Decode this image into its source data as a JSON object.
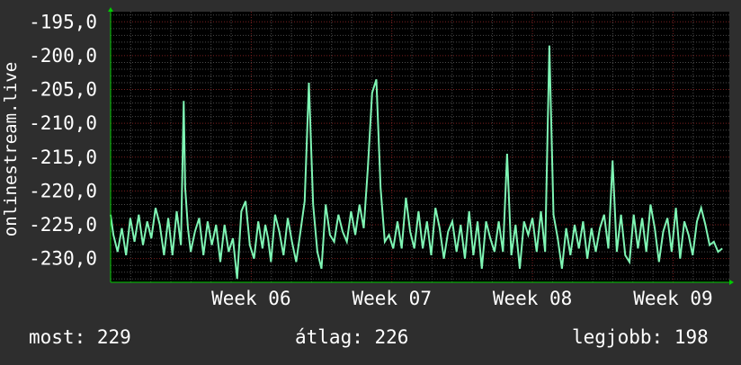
{
  "chart_data": {
    "type": "line",
    "ylabel": "onlinestream.live",
    "ylim": [
      -233.5,
      -193.5
    ],
    "yticks": [
      -195,
      -200,
      -205,
      -210,
      -215,
      -220,
      -225,
      -230
    ],
    "ytick_labels": [
      "-195,0",
      "-200,0",
      "-205,0",
      "-210,0",
      "-215,0",
      "-220,0",
      "-225,0",
      "-230,0"
    ],
    "xlim": [
      0,
      4.4
    ],
    "xticks": [
      1,
      2,
      3,
      4
    ],
    "xtick_labels": [
      "Week 06",
      "Week 07",
      "Week 08",
      "Week 09"
    ],
    "grid": true,
    "series": [
      {
        "color": "#7ff5b4",
        "x": [
          0.0,
          0.02,
          0.05,
          0.08,
          0.11,
          0.14,
          0.17,
          0.2,
          0.23,
          0.26,
          0.29,
          0.32,
          0.35,
          0.38,
          0.41,
          0.44,
          0.47,
          0.5,
          0.52,
          0.53,
          0.55,
          0.57,
          0.6,
          0.63,
          0.66,
          0.69,
          0.72,
          0.75,
          0.78,
          0.81,
          0.84,
          0.87,
          0.9,
          0.93,
          0.96,
          0.99,
          1.02,
          1.05,
          1.08,
          1.1,
          1.12,
          1.14,
          1.17,
          1.2,
          1.23,
          1.26,
          1.29,
          1.32,
          1.35,
          1.38,
          1.41,
          1.44,
          1.47,
          1.5,
          1.53,
          1.56,
          1.59,
          1.62,
          1.65,
          1.68,
          1.71,
          1.74,
          1.77,
          1.8,
          1.83,
          1.86,
          1.89,
          1.92,
          1.95,
          1.98,
          2.01,
          2.04,
          2.07,
          2.1,
          2.13,
          2.16,
          2.19,
          2.22,
          2.25,
          2.28,
          2.31,
          2.34,
          2.37,
          2.4,
          2.43,
          2.46,
          2.49,
          2.52,
          2.55,
          2.58,
          2.61,
          2.64,
          2.67,
          2.7,
          2.73,
          2.76,
          2.79,
          2.82,
          2.85,
          2.88,
          2.91,
          2.94,
          2.97,
          3.0,
          3.03,
          3.06,
          3.09,
          3.12,
          3.15,
          3.18,
          3.21,
          3.24,
          3.27,
          3.3,
          3.33,
          3.36,
          3.39,
          3.42,
          3.45,
          3.48,
          3.51,
          3.54,
          3.57,
          3.6,
          3.63,
          3.66,
          3.69,
          3.72,
          3.75,
          3.78,
          3.81,
          3.84,
          3.87,
          3.9,
          3.93,
          3.96,
          3.99,
          4.02,
          4.05,
          4.08,
          4.11,
          4.14,
          4.17,
          4.2,
          4.23,
          4.26,
          4.29,
          4.32,
          4.35
        ],
        "y": [
          -223.5,
          -226.5,
          -229.0,
          -225.5,
          -229.5,
          -224.0,
          -227.5,
          -223.5,
          -228.0,
          -224.5,
          -227.0,
          -222.5,
          -225.0,
          -229.5,
          -224.0,
          -229.5,
          -223.0,
          -228.0,
          -206.7,
          -219.5,
          -225.5,
          -229.0,
          -226.0,
          -224.0,
          -229.5,
          -224.5,
          -228.0,
          -225.0,
          -230.5,
          -225.0,
          -229.0,
          -227.0,
          -233.0,
          -223.0,
          -221.5,
          -228.0,
          -230.0,
          -224.5,
          -228.5,
          -225.0,
          -227.0,
          -230.5,
          -223.5,
          -226.0,
          -229.5,
          -224.0,
          -227.5,
          -230.5,
          -226.0,
          -221.5,
          -204.0,
          -222.0,
          -229.0,
          -231.5,
          -222.0,
          -226.5,
          -227.5,
          -223.5,
          -226.0,
          -227.5,
          -223.0,
          -226.5,
          -222.0,
          -225.5,
          -216.5,
          -205.5,
          -203.5,
          -219.5,
          -227.5,
          -226.5,
          -228.5,
          -224.5,
          -228.5,
          -221.0,
          -226.0,
          -228.5,
          -223.0,
          -228.5,
          -224.5,
          -229.5,
          -222.5,
          -225.5,
          -230.0,
          -226.0,
          -224.5,
          -229.0,
          -225.0,
          -230.0,
          -223.0,
          -229.5,
          -224.5,
          -231.5,
          -224.5,
          -227.0,
          -229.0,
          -224.5,
          -229.0,
          -214.5,
          -229.5,
          -225.0,
          -231.5,
          -224.5,
          -226.5,
          -224.0,
          -229.0,
          -223.0,
          -229.0,
          -198.5,
          -223.5,
          -227.0,
          -231.5,
          -225.5,
          -229.5,
          -225.0,
          -228.5,
          -224.5,
          -230.0,
          -225.5,
          -229.0,
          -225.5,
          -223.5,
          -228.5,
          -215.5,
          -229.0,
          -223.5,
          -229.5,
          -230.5,
          -223.5,
          -228.5,
          -224.0,
          -229.0,
          -222.0,
          -225.5,
          -230.5,
          -226.0,
          -224.0,
          -229.0,
          -222.5,
          -230.0,
          -224.5,
          -226.5,
          -229.5,
          -224.5,
          -222.5,
          -225.0,
          -228.0,
          -227.5,
          -229.0,
          -228.5
        ]
      }
    ]
  },
  "footer": {
    "most_label": "most:",
    "most_value": "229",
    "avg_label": "átlag:",
    "avg_value": "226",
    "best_label": "legjobb:",
    "best_value": "198"
  },
  "colors": {
    "plot_bg": "#000000",
    "grid_minor": "#4a4a4a",
    "grid_major": "#7a2020",
    "line": "#7ff5b4",
    "axis": "#00cc00"
  }
}
